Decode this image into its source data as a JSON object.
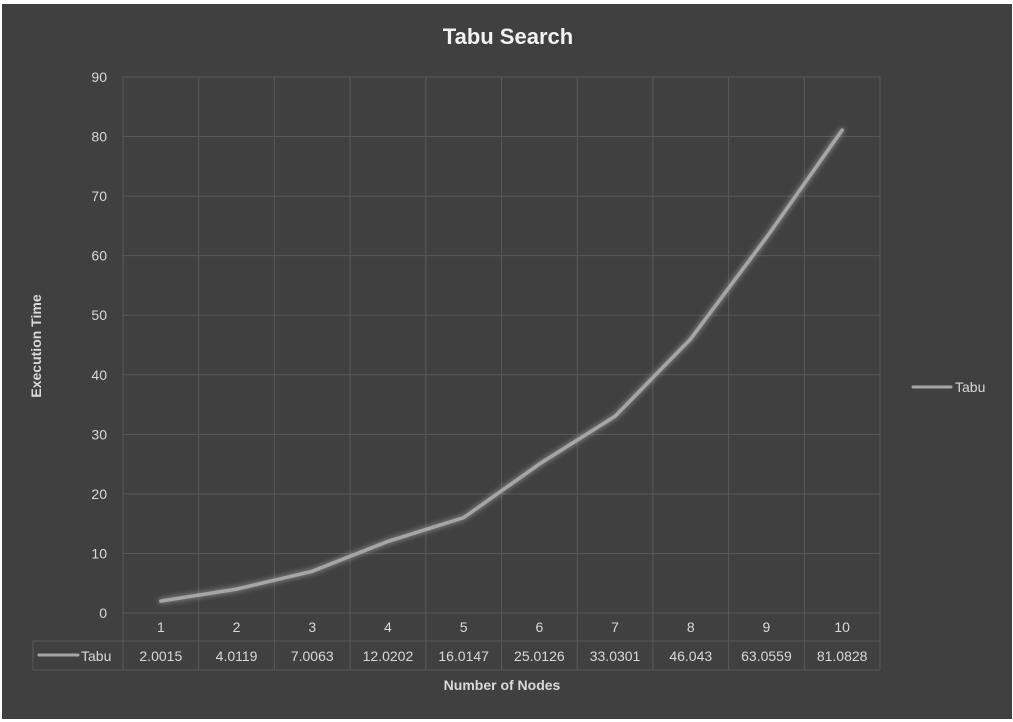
{
  "chart_data": {
    "type": "line",
    "title": "Tabu Search",
    "xlabel": "Number of Nodes",
    "ylabel": "Execution Time",
    "categories": [
      "1",
      "2",
      "3",
      "4",
      "5",
      "6",
      "7",
      "8",
      "9",
      "10"
    ],
    "series": [
      {
        "name": "Tabu",
        "values": [
          2.0015,
          4.0119,
          7.0063,
          12.0202,
          16.0147,
          25.0126,
          33.0301,
          46.043,
          63.0559,
          81.0828
        ],
        "labels": [
          "2.0015",
          "4.0119",
          "7.0063",
          "12.0202",
          "16.0147",
          "25.0126",
          "33.0301",
          "46.043",
          "63.0559",
          "81.0828"
        ],
        "color": "#a6a6a6"
      }
    ],
    "ylim": [
      0,
      90
    ],
    "yticks": [
      "0",
      "10",
      "20",
      "30",
      "40",
      "50",
      "60",
      "70",
      "80",
      "90"
    ],
    "grid": true,
    "legend_position": "right",
    "data_table": true
  },
  "colors": {
    "background": "#404040",
    "grid": "#595959",
    "text": "#d9d9d9",
    "title": "#f2f2f2"
  }
}
